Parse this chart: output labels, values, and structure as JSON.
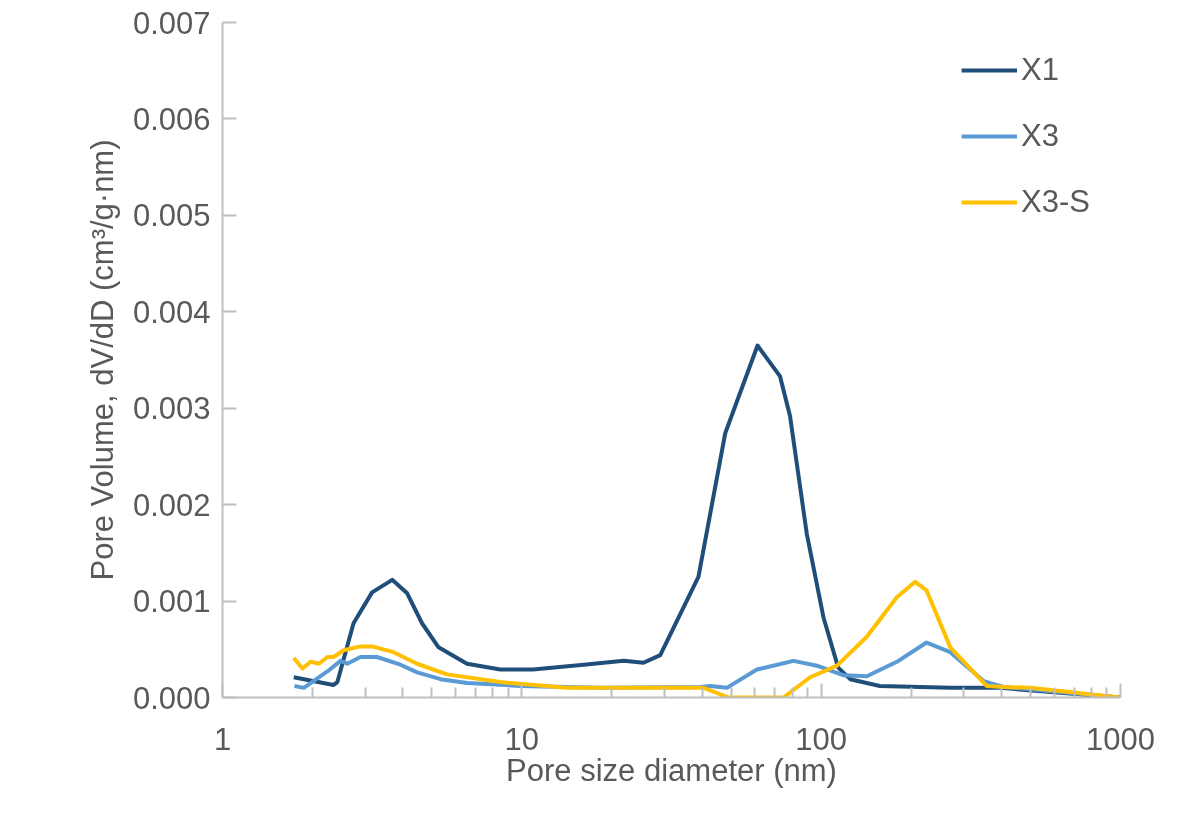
{
  "chart_data": {
    "type": "line",
    "xlabel": "Pore size diameter (nm)",
    "ylabel": "Pore Volume, dV/dD (cm³/g·nm)",
    "log": "x",
    "grid": false,
    "legend": "top right",
    "line_style": "solid",
    "marker": "none",
    "xlim": [
      1,
      1000
    ],
    "xticks": [
      1,
      10,
      100,
      1000
    ],
    "ylim": [
      0,
      0.007
    ],
    "yticks": [
      {
        "value": 0,
        "label": "0.000"
      },
      {
        "value": 0.001,
        "label": "0.001"
      },
      {
        "value": 0.002,
        "label": "0.002"
      },
      {
        "value": 0.003,
        "label": "0.003"
      },
      {
        "value": 0.004,
        "label": "0.004"
      },
      {
        "value": 0.005,
        "label": "0.005"
      },
      {
        "value": 0.006,
        "label": "0.006"
      },
      {
        "value": 0.007,
        "label": "0.007"
      }
    ],
    "series": [
      {
        "name": "X1",
        "color": "#1f4e79",
        "x": [
          1.73,
          2.35,
          2.42,
          2.74,
          3.16,
          3.69,
          4.14,
          4.64,
          5.27,
          6.56,
          8.47,
          10.9,
          16.1,
          21.9,
          25.5,
          29.0,
          37.5,
          38.9,
          47.8,
          61.3,
          72.9,
          78.7,
          89.5,
          101.8,
          114,
          125,
          157,
          270,
          396,
          995
        ],
        "values": [
          0.00021,
          0.00013,
          0.00016,
          0.00077,
          0.00109,
          0.00122,
          0.00108,
          0.00077,
          0.00052,
          0.00035,
          0.00029,
          0.00029,
          0.00034,
          0.00038,
          0.00036,
          0.00044,
          0.00115,
          0.00125,
          0.00274,
          0.00365,
          0.00333,
          0.00292,
          0.0017,
          0.00083,
          0.00031,
          0.00019,
          0.00012,
          0.0001,
          0.0001,
          0.0
        ]
      },
      {
        "name": "X3",
        "color": "#5b9bd5",
        "x": [
          1.74,
          1.87,
          2.24,
          2.48,
          2.61,
          2.89,
          3.28,
          3.93,
          4.47,
          5.35,
          6.56,
          9.89,
          18.3,
          39.4,
          42.6,
          48.4,
          61,
          80.9,
          96.8,
          119,
          142,
          179,
          225,
          270,
          349,
          406,
          995
        ],
        "values": [
          0.00012,
          0.0001,
          0.00027,
          0.00038,
          0.00035,
          0.00042,
          0.00042,
          0.00034,
          0.00026,
          0.00019,
          0.00015,
          0.00012,
          0.0001,
          0.00011,
          0.00012,
          0.0001,
          0.00029,
          0.00038,
          0.00033,
          0.00023,
          0.00022,
          0.00037,
          0.00057,
          0.00047,
          0.00017,
          0.00011,
          0.0
        ]
      },
      {
        "name": "X3-S",
        "color": "#ffc000",
        "x": [
          1.73,
          1.85,
          1.97,
          2.1,
          2.24,
          2.35,
          2.54,
          2.89,
          3.16,
          3.73,
          4.47,
          5.62,
          8.47,
          14.1,
          30.5,
          40.5,
          49.1,
          74.8,
          91.9,
          113,
          142,
          179,
          206,
          225,
          270,
          357,
          406,
          499,
          995
        ],
        "values": [
          0.00041,
          0.0003,
          0.00037,
          0.00035,
          0.00042,
          0.00042,
          0.00049,
          0.00053,
          0.00053,
          0.00047,
          0.00035,
          0.00024,
          0.00016,
          0.0001,
          0.0001,
          0.0001,
          0.0,
          0.0,
          0.00021,
          0.00033,
          0.00063,
          0.00104,
          0.0012,
          0.00111,
          0.00052,
          0.00012,
          0.00011,
          0.0001,
          0.0
        ]
      }
    ]
  }
}
